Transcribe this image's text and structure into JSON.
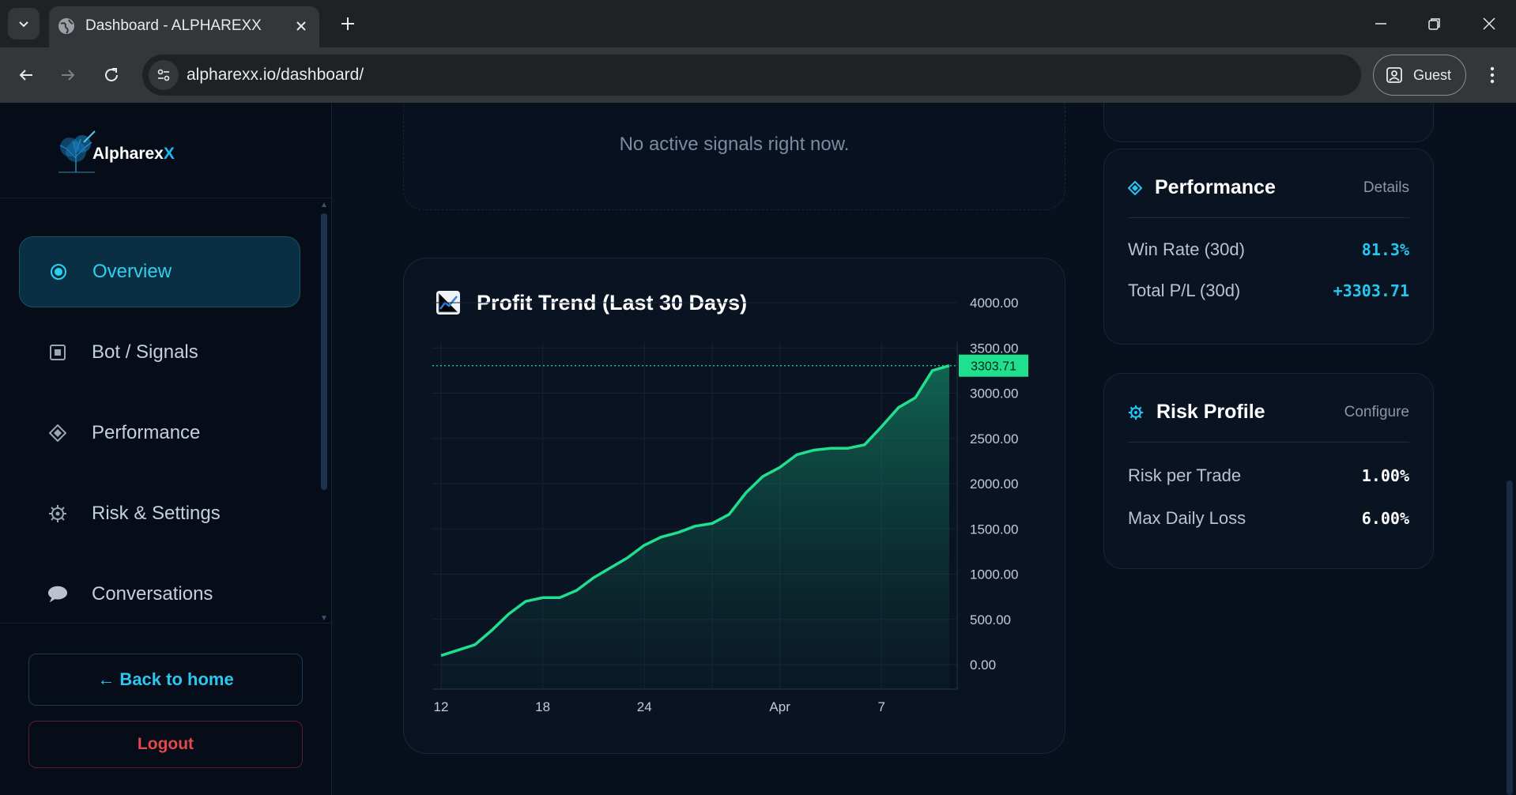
{
  "browser": {
    "tab_title": "Dashboard - ALPHAREXX",
    "url": "alpharexx.io/dashboard/",
    "profile_label": "Guest"
  },
  "sidebar": {
    "logo_text": "Alpharex",
    "logo_accent": "X",
    "items": [
      {
        "label": "Overview",
        "icon": "radio-dot-icon",
        "active": true
      },
      {
        "label": "Bot / Signals",
        "icon": "square-stop-icon",
        "active": false
      },
      {
        "label": "Performance",
        "icon": "diamond-icon",
        "active": false
      },
      {
        "label": "Risk & Settings",
        "icon": "gear-icon",
        "active": false
      },
      {
        "label": "Conversations",
        "icon": "speech-bubble-icon",
        "active": false
      }
    ],
    "back_label": "← Back to home",
    "logout_label": "Logout"
  },
  "signals": {
    "empty_message": "No active signals right now."
  },
  "profit_chart": {
    "title": "Profit Trend (Last 30 Days)",
    "title_icon": "chart-increasing-icon"
  },
  "chart_data": {
    "type": "area",
    "title": "Profit Trend (Last 30 Days)",
    "x_tick_labels": [
      "12",
      "18",
      "24",
      "Apr",
      "7"
    ],
    "x_tick_index": [
      0,
      6,
      12,
      20,
      26
    ],
    "y_tick_labels": [
      "4000.00",
      "3500.00",
      "3000.00",
      "2500.00",
      "2000.00",
      "1500.00",
      "1000.00",
      "500.00",
      "0.00"
    ],
    "ylim": [
      0,
      4000
    ],
    "series": [
      {
        "values": [
          100,
          160,
          220,
          380,
          560,
          700,
          740,
          740,
          820,
          960,
          1070,
          1180,
          1320,
          1410,
          1460,
          1530,
          1560,
          1660,
          1900,
          2080,
          2180,
          2320,
          2370,
          2390,
          2390,
          2430,
          2630,
          2840,
          2950,
          3250,
          3303.71
        ]
      }
    ],
    "last_value_label": "3303.71",
    "colors": {
      "line": "#20e090",
      "badge": "#1fe08c"
    }
  },
  "performance": {
    "title": "Performance",
    "link": "Details",
    "rows": [
      {
        "label": "Win Rate (30d)",
        "value": "81.3%"
      },
      {
        "label": "Total P/L (30d)",
        "value": "+3303.71"
      }
    ]
  },
  "risk": {
    "title": "Risk Profile",
    "link": "Configure",
    "rows": [
      {
        "label": "Risk per Trade",
        "value": "1.00%"
      },
      {
        "label": "Max Daily Loss",
        "value": "6.00%"
      }
    ]
  },
  "theme": {
    "accent": "#22c8f2",
    "danger": "#e54848",
    "background": "#07101c"
  }
}
